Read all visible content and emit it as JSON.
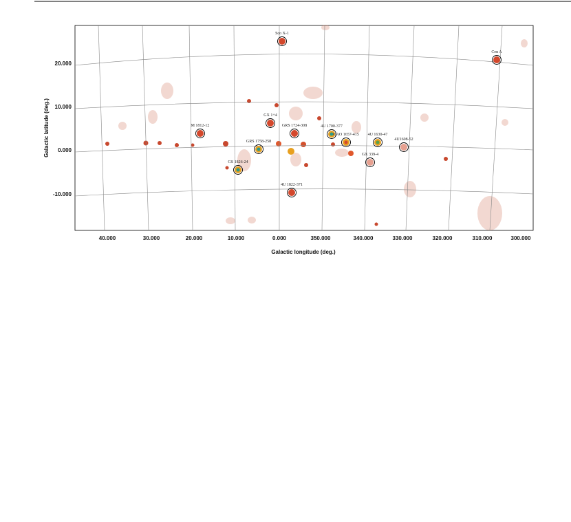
{
  "figure": {
    "xlabel": "Galactic longitude (deg.)",
    "ylabel": "Galactic latitude (deg.)",
    "xticks": [
      "40.000",
      "30.000",
      "20.000",
      "10.000",
      "0.000",
      "350.000",
      "340.000",
      "330.000",
      "320.000",
      "310.000",
      "300.000"
    ],
    "yticks": [
      "20.000",
      "10.000",
      "0.000",
      "-10.000"
    ],
    "sources": [
      {
        "label": "Sco X-1"
      },
      {
        "label": "Cen A"
      },
      {
        "label": "GX 1+4"
      },
      {
        "label": "GRS 1724-308"
      },
      {
        "label": "4U 1700-377"
      },
      {
        "label": "OAO 1657-415"
      },
      {
        "label": "4U 1630-47"
      },
      {
        "label": "4U1608-52"
      },
      {
        "label": "M 1812-12"
      },
      {
        "label": "GRS 1758-258"
      },
      {
        "label": "GS 1826-24"
      },
      {
        "label": "GX 339-4"
      },
      {
        "label": "4U 1822-371"
      }
    ]
  }
}
